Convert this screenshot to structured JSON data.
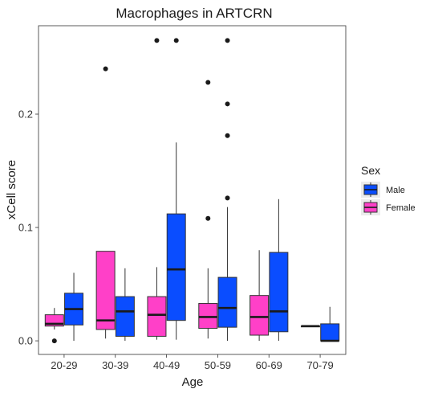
{
  "chart_data": {
    "type": "boxplot",
    "title": "Macrophages in ARTCRN",
    "xlabel": "Age",
    "ylabel": "xCell score",
    "categories": [
      "20-29",
      "30-39",
      "40-49",
      "50-59",
      "60-69",
      "70-79"
    ],
    "y_ticks": [
      0.0,
      0.1,
      0.2
    ],
    "y_tick_labels": [
      "0.0",
      "0.1",
      "0.2"
    ],
    "ylim": [
      -0.012,
      0.278
    ],
    "grid": false,
    "legend": {
      "title": "Sex",
      "placement": "right",
      "entries": [
        {
          "label": "Male",
          "color": "#0a4dff"
        },
        {
          "label": "Female",
          "color": "#ff40c8"
        }
      ]
    },
    "series": [
      {
        "name": "Female",
        "color": "#ff40c8",
        "boxes": [
          {
            "category": "20-29",
            "min": 0.01,
            "q1": 0.013,
            "median": 0.015,
            "q3": 0.023,
            "max": 0.029,
            "outliers": [
              0.0
            ]
          },
          {
            "category": "30-39",
            "min": 0.002,
            "q1": 0.01,
            "median": 0.018,
            "q3": 0.079,
            "max": 0.079,
            "outliers": [
              0.24
            ]
          },
          {
            "category": "40-49",
            "min": 0.001,
            "q1": 0.004,
            "median": 0.023,
            "q3": 0.039,
            "max": 0.065,
            "outliers": [
              0.265
            ]
          },
          {
            "category": "50-59",
            "min": 0.002,
            "q1": 0.011,
            "median": 0.021,
            "q3": 0.033,
            "max": 0.064,
            "outliers": [
              0.108,
              0.228
            ]
          },
          {
            "category": "60-69",
            "min": 0.0,
            "q1": 0.005,
            "median": 0.021,
            "q3": 0.04,
            "max": 0.08,
            "outliers": []
          },
          {
            "category": "70-79",
            "min": 0.013,
            "q1": 0.013,
            "median": 0.013,
            "q3": 0.013,
            "max": 0.013,
            "outliers": []
          }
        ]
      },
      {
        "name": "Male",
        "color": "#0a4dff",
        "boxes": [
          {
            "category": "20-29",
            "min": 0.0,
            "q1": 0.014,
            "median": 0.028,
            "q3": 0.042,
            "max": 0.06,
            "outliers": []
          },
          {
            "category": "30-39",
            "min": 0.0,
            "q1": 0.004,
            "median": 0.026,
            "q3": 0.039,
            "max": 0.064,
            "outliers": []
          },
          {
            "category": "40-49",
            "min": 0.001,
            "q1": 0.018,
            "median": 0.063,
            "q3": 0.112,
            "max": 0.175,
            "outliers": [
              0.265
            ]
          },
          {
            "category": "50-59",
            "min": 0.0,
            "q1": 0.012,
            "median": 0.029,
            "q3": 0.056,
            "max": 0.118,
            "outliers": [
              0.126,
              0.181,
              0.209,
              0.265
            ]
          },
          {
            "category": "60-69",
            "min": 0.0,
            "q1": 0.008,
            "median": 0.026,
            "q3": 0.078,
            "max": 0.125,
            "outliers": []
          },
          {
            "category": "70-79",
            "min": 0.0,
            "q1": 0.0,
            "median": 0.0,
            "q3": 0.015,
            "max": 0.03,
            "outliers": []
          }
        ]
      }
    ]
  }
}
